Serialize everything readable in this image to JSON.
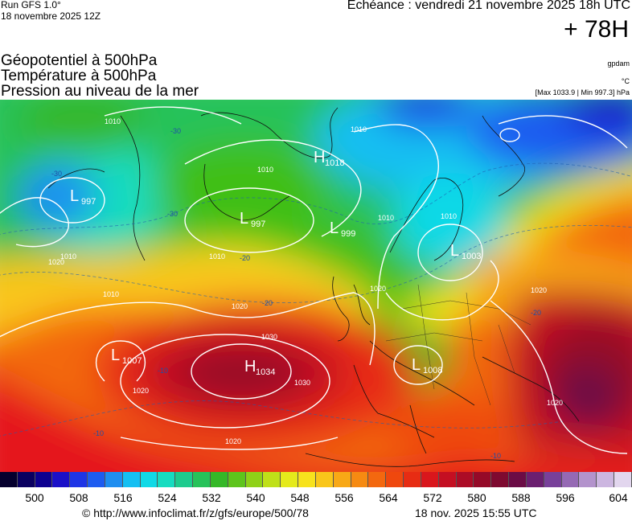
{
  "header": {
    "run": "Run GFS 1.0°",
    "run_date": "18 novembre 2025 12Z",
    "echeance": "Echéance : vendredi 21 novembre 2025 18h UTC",
    "step": "+ 78H",
    "title1": "Géopotentiel à 500hPa",
    "title2": "Température à 500hPa",
    "title3": "Pression au niveau de la mer",
    "unit_gpdam": "gpdam",
    "unit_c": "°C",
    "maxmin": "[Max 1033.9 | Min 997.3] hPa"
  },
  "map": {
    "pressure_centres": [
      {
        "type": "L",
        "value": "997"
      },
      {
        "type": "H",
        "value": "1018"
      },
      {
        "type": "L",
        "value": "997"
      },
      {
        "type": "L",
        "value": "999"
      },
      {
        "type": "L",
        "value": "1003"
      },
      {
        "type": "L",
        "value": "1007"
      },
      {
        "type": "H",
        "value": "1034"
      },
      {
        "type": "L",
        "value": "1008"
      }
    ],
    "isobar_labels": [
      "1010",
      "1010",
      "1010",
      "1010",
      "1010",
      "1010",
      "1010",
      "1010",
      "1020",
      "1020",
      "1020",
      "1020",
      "1020",
      "1020",
      "1020",
      "1030",
      "1030"
    ],
    "temp_labels": [
      "-30",
      "-30",
      "-30",
      "-20",
      "-20",
      "-20",
      "-10",
      "-10",
      "-10"
    ],
    "colors": {
      "deep_red": "#8e0a24",
      "red": "#e5131d",
      "orange": "#f7820d",
      "yellow": "#f5e51e",
      "green": "#3fbf16",
      "cyan": "#13d6d0",
      "blue": "#1e3cdb",
      "isobar": "#ffffff"
    }
  },
  "scale": {
    "ticks": [
      "500",
      "508",
      "516",
      "524",
      "532",
      "540",
      "548",
      "556",
      "564",
      "572",
      "580",
      "588",
      "596",
      "604"
    ],
    "colors": [
      "#05002e",
      "#0a0060",
      "#0d0090",
      "#1a10c8",
      "#1e35e6",
      "#1e5cf0",
      "#1f8ef0",
      "#15bff2",
      "#10d9e6",
      "#17dcc0",
      "#1ecb8e",
      "#27c25a",
      "#35b828",
      "#5ec41c",
      "#8fd118",
      "#bfe019",
      "#e5ea1c",
      "#f7e21d",
      "#f9c61a",
      "#f8a816",
      "#f68a12",
      "#f3680f",
      "#ef480e",
      "#e72c13",
      "#d9161c",
      "#c40f22",
      "#ac0c26",
      "#950a28",
      "#7e0a30",
      "#6b0c46",
      "#6b1f70",
      "#78409a",
      "#9569b4",
      "#b393cc",
      "#ccb6e0",
      "#e2d6ee"
    ]
  },
  "footer": {
    "url": "© http://www.infoclimat.fr/z/gfs/europe/500/78",
    "date": "18 nov. 2025 15:55 UTC"
  }
}
